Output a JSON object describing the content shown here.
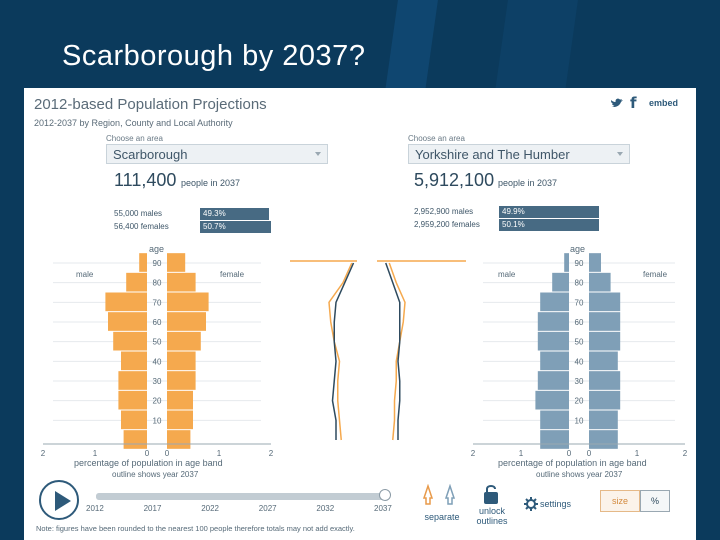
{
  "slide_title": "Scarborough by 2037?",
  "app": {
    "title": "2012-based Population Projections",
    "subtitle": "2012-2037 by Region, County and Local Authority",
    "embed_label": "embed",
    "twitter_icon": "twitter-icon",
    "facebook_icon": "facebook-icon"
  },
  "left_area": {
    "choose_label": "Choose an area",
    "selected": "Scarborough",
    "total": "111,400",
    "total_label": "people in 2037",
    "males": "55,000 males",
    "females": "56,400 females",
    "male_pct": "49.3%",
    "female_pct": "50.7%",
    "male_share": 0.493,
    "female_share": 0.507
  },
  "right_area": {
    "choose_label": "Choose an area",
    "selected": "Yorkshire and The Humber",
    "total": "5,912,100",
    "total_label": "people in 2037",
    "males": "2,952,900 males",
    "females": "2,959,200 females",
    "male_pct": "49.9%",
    "female_pct": "50.1%",
    "male_share": 0.499,
    "female_share": 0.501
  },
  "pyramid": {
    "age_label": "age",
    "male_label": "male",
    "female_label": "female",
    "age_ticks": [
      "90",
      "80",
      "70",
      "60",
      "50",
      "40",
      "30",
      "20",
      "10"
    ],
    "x_ticks_left": [
      "2",
      "1",
      "0",
      "1",
      "2"
    ],
    "x_ticks_right": [
      "2",
      "1",
      "0",
      "1",
      "2"
    ],
    "xlabel": "percentage of population in age band",
    "xlabel_note": "outline shows year 2037"
  },
  "chart_data": [
    {
      "type": "bar",
      "orientation": "horizontal-pyramid",
      "area": "Scarborough",
      "age_groups": [
        0,
        10,
        20,
        30,
        40,
        50,
        60,
        70,
        80,
        90
      ],
      "series": [
        {
          "name": "male",
          "values": [
            0.45,
            0.5,
            0.55,
            0.55,
            0.5,
            0.65,
            0.75,
            0.8,
            0.4,
            0.15
          ]
        },
        {
          "name": "female",
          "values": [
            0.45,
            0.5,
            0.5,
            0.55,
            0.55,
            0.65,
            0.75,
            0.8,
            0.55,
            0.35
          ]
        }
      ],
      "xlim": [
        0,
        2
      ]
    },
    {
      "type": "bar",
      "orientation": "horizontal-pyramid",
      "area": "Yorkshire and The Humber",
      "age_groups": [
        0,
        10,
        20,
        30,
        40,
        50,
        60,
        70,
        80,
        90
      ],
      "series": [
        {
          "name": "male",
          "values": [
            0.6,
            0.6,
            0.7,
            0.65,
            0.6,
            0.65,
            0.65,
            0.6,
            0.35,
            0.1
          ]
        },
        {
          "name": "female",
          "values": [
            0.6,
            0.6,
            0.65,
            0.65,
            0.6,
            0.65,
            0.65,
            0.65,
            0.45,
            0.25
          ]
        }
      ],
      "xlim": [
        0,
        2
      ]
    }
  ],
  "timeline": {
    "years": [
      "2012",
      "2017",
      "2022",
      "2027",
      "2032",
      "2037"
    ],
    "current_year": "2037",
    "progress": 1.0
  },
  "controls": {
    "separate_label": "separate",
    "unlock_label_1": "unlock",
    "unlock_label_2": "outlines",
    "settings_label": "settings",
    "size_label": "size",
    "percent_label": "%"
  },
  "note": "Note: figures have been rounded to the nearest 100 people therefore totals may not add exactly.",
  "colors": {
    "background": "#0b3a5c",
    "orange": "#f5a94e",
    "steel": "#7f9fb7",
    "navy": "#2e4a5e",
    "pct_bar": "#476a83"
  }
}
